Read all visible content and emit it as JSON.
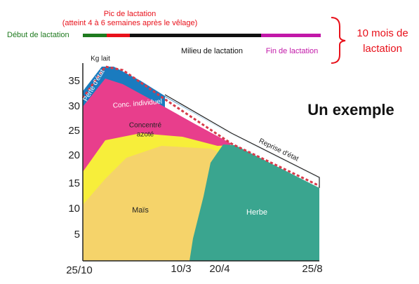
{
  "timeline": {
    "start": "Début de lactation",
    "peak": "Pic de lactation",
    "peak_note": "(atteint 4 à 6 semaines après le vêlage)",
    "middle": "Milieu de lactation",
    "end": "Fin de lactation"
  },
  "duration": [
    "10 mois de",
    "lactation"
  ],
  "example_title": "Un exemple",
  "chart": {
    "y_axis_label": "Kg lait",
    "yticks": [
      "35",
      "30",
      "25",
      "20",
      "15",
      "10",
      "5"
    ],
    "xticks": [
      "25/10",
      "10/3",
      "20/4",
      "25/8"
    ],
    "areas": {
      "loss": "Perte d'état",
      "individual": "Conc. individuel",
      "protein": [
        "Concentré",
        "azoté"
      ],
      "maize": "Maïs",
      "grass": "Herbe",
      "recovery": "Reprise d'état"
    }
  }
}
